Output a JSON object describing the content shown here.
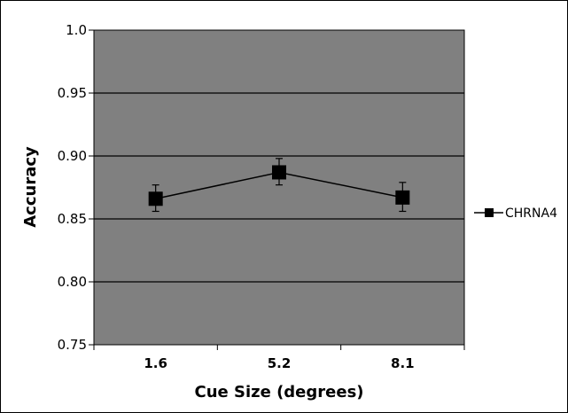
{
  "chart_data": {
    "type": "line",
    "title": "",
    "xlabel": "Cue Size (degrees)",
    "ylabel": "Accuracy",
    "categories": [
      "1.6",
      "5.2",
      "8.1"
    ],
    "y_tick_labels": [
      "0.75",
      "0.80",
      "0.85",
      "0.90",
      "0.95",
      "1.0"
    ],
    "y_ticks": [
      0.75,
      0.8,
      0.85,
      0.9,
      0.95,
      1.0
    ],
    "ylim": [
      0.75,
      1.0
    ],
    "grid": true,
    "legend_position": "right",
    "plot_background": "#808080",
    "series": [
      {
        "name": "CHRNA4",
        "values": [
          0.866,
          0.887,
          0.867
        ],
        "error_low": [
          0.856,
          0.877,
          0.856
        ],
        "error_high": [
          0.877,
          0.898,
          0.879
        ],
        "color": "#000000",
        "marker": "square"
      }
    ]
  }
}
